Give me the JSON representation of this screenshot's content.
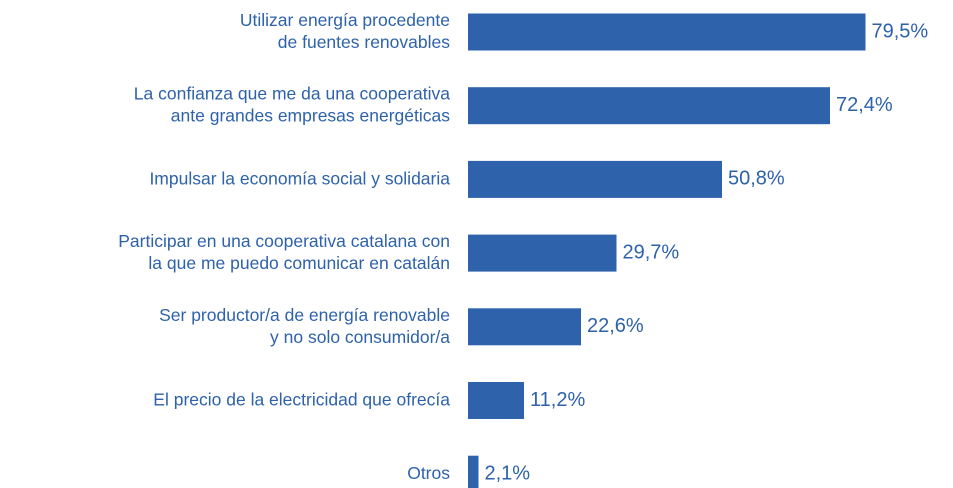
{
  "chart_data": {
    "type": "bar",
    "orientation": "horizontal",
    "categories": [
      "Utilizar energía procedente\nde fuentes renovables",
      "La confianza que me da una cooperativa\nante grandes empresas energéticas",
      "Impulsar la economía social y solidaria",
      "Participar en una cooperativa catalana con\nla que me puedo comunicar en catalán",
      "Ser productor/a de energía renovable\ny no solo consumidor/a",
      "El precio de la electricidad que ofrecía",
      "Otros"
    ],
    "values": [
      79.5,
      72.4,
      50.8,
      29.7,
      22.6,
      11.2,
      2.1
    ],
    "value_labels": [
      "79,5%",
      "72,4%",
      "50,8%",
      "29,7%",
      "22,6%",
      "11,2%",
      "2,1%"
    ],
    "color": "#2e62ab"
  }
}
